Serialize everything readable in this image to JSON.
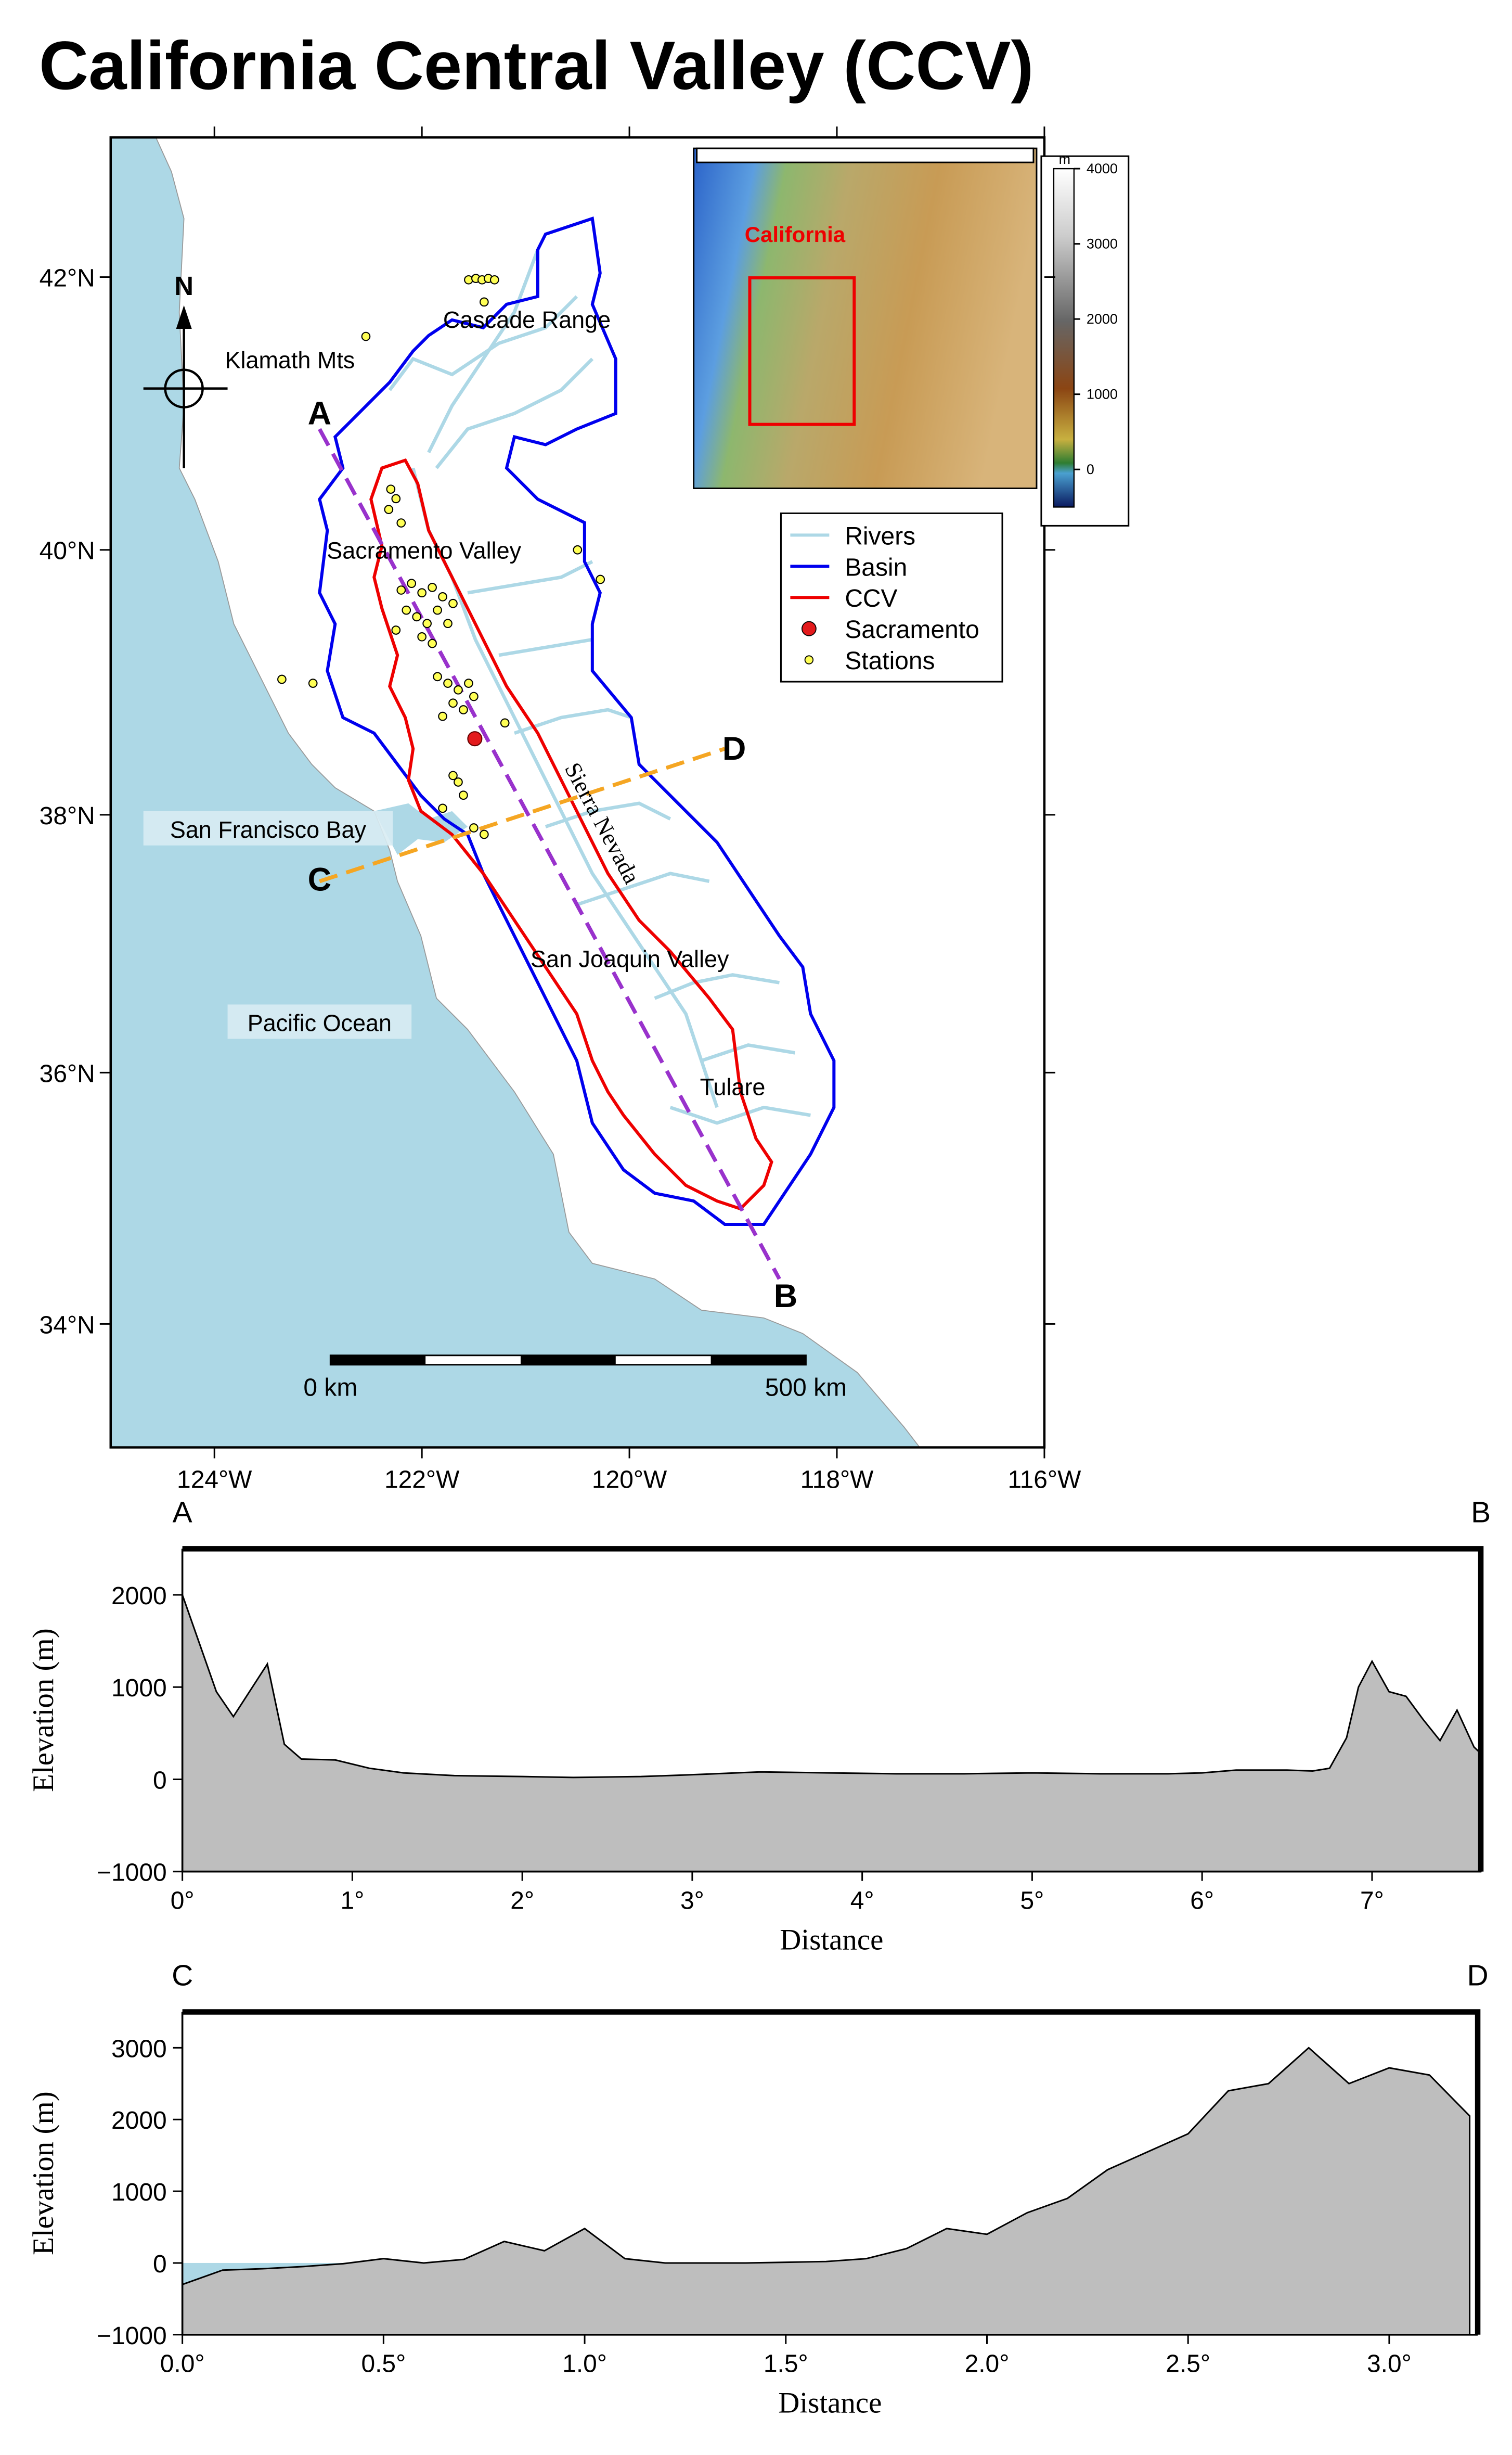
{
  "title": "California Central Valley (CCV)",
  "map": {
    "xlim": [
      -125,
      -116
    ],
    "ylim": [
      33,
      43
    ],
    "xticks": [
      {
        "value": -124,
        "label": "124°W"
      },
      {
        "value": -122,
        "label": "122°W"
      },
      {
        "value": -120,
        "label": "120°W"
      },
      {
        "value": -118,
        "label": "118°W"
      },
      {
        "value": -116,
        "label": "116°W"
      }
    ],
    "yticks": [
      {
        "value": 34,
        "label": "34°N"
      },
      {
        "value": 36,
        "label": "36°N"
      },
      {
        "value": 38,
        "label": "38°N"
      },
      {
        "value": 40,
        "label": "40°N"
      },
      {
        "value": 42,
        "label": "42°N"
      }
    ],
    "places": [
      "Cascade Range",
      "Klamath Mts",
      "Sacramento Valley",
      "Sierra Nevada",
      "San Francisco Bay",
      "Pacific Ocean",
      "San Joaquin Valley",
      "Tulare"
    ],
    "profile_labels": [
      "A",
      "B",
      "C",
      "D"
    ],
    "north": "N",
    "scale_bar": [
      "0 km",
      "500 km"
    ],
    "legend": [
      {
        "name": "Rivers",
        "color": "#add8e6"
      },
      {
        "name": "Basin",
        "color": "#0000ee"
      },
      {
        "name": "CCV",
        "color": "#ee0000"
      },
      {
        "name": "Sacramento",
        "color": "#e31a1c"
      },
      {
        "name": "Stations",
        "color": "#ffff55"
      }
    ],
    "sacramento": {
      "lon": -121.49,
      "lat": 38.58
    },
    "stations": {
      "lon": [
        -121.55,
        -121.48,
        -121.42,
        -121.36,
        -121.3,
        -121.4,
        -122.54,
        -122.3,
        -122.25,
        -122.32,
        -122.2,
        -123.35,
        -123.05,
        -120.5,
        -120.28,
        -122.2,
        -122.1,
        -122.0,
        -121.9,
        -121.8,
        -122.15,
        -122.05,
        -121.95,
        -121.85,
        -121.75,
        -122.25,
        -121.7,
        -122.0,
        -121.9,
        -121.85,
        -121.75,
        -121.65,
        -121.7,
        -121.6,
        -121.8,
        -121.55,
        -121.5,
        -121.2,
        -121.7,
        -121.65,
        -121.6,
        -121.5,
        -121.4,
        -121.8
      ],
      "lat": [
        41.98,
        41.99,
        41.98,
        41.99,
        41.98,
        41.82,
        41.57,
        40.45,
        40.38,
        40.3,
        40.2,
        39.03,
        39.0,
        40.0,
        39.78,
        39.7,
        39.75,
        39.68,
        39.72,
        39.65,
        39.55,
        39.5,
        39.45,
        39.55,
        39.45,
        39.4,
        39.6,
        39.35,
        39.3,
        39.05,
        39.0,
        38.95,
        38.85,
        38.8,
        38.75,
        39.0,
        38.9,
        38.7,
        38.3,
        38.25,
        38.15,
        37.9,
        37.85,
        38.05
      ]
    },
    "inset": {
      "label": "California",
      "unit": "m",
      "colorbar_lim": [
        -500,
        4000
      ],
      "colorbar_ticks": [
        0,
        1000,
        2000,
        3000,
        4000
      ]
    }
  },
  "chart_data": [
    {
      "type": "area",
      "start_label": "A",
      "end_label": "B",
      "x": [
        0,
        0.2,
        0.3,
        0.5,
        0.6,
        0.7,
        0.9,
        1.1,
        1.3,
        1.6,
        2.0,
        2.3,
        2.7,
        3.0,
        3.4,
        3.8,
        4.2,
        4.6,
        5.0,
        5.4,
        5.8,
        6.0,
        6.2,
        6.5,
        6.65,
        6.75,
        6.85,
        6.92,
        7.0,
        7.1,
        7.2,
        7.3,
        7.4,
        7.5,
        7.6,
        7.64
      ],
      "values": [
        2000,
        950,
        680,
        1250,
        380,
        220,
        210,
        120,
        70,
        40,
        30,
        20,
        30,
        50,
        80,
        70,
        60,
        60,
        70,
        60,
        60,
        70,
        100,
        100,
        90,
        120,
        450,
        1000,
        1280,
        950,
        900,
        650,
        420,
        750,
        350,
        280
      ],
      "xlim": [
        0,
        7.64
      ],
      "ylim": [
        -1000,
        2500
      ],
      "xticks": [
        {
          "value": 0,
          "label": "0°"
        },
        {
          "value": 1,
          "label": "1°"
        },
        {
          "value": 2,
          "label": "2°"
        },
        {
          "value": 3,
          "label": "3°"
        },
        {
          "value": 4,
          "label": "4°"
        },
        {
          "value": 5,
          "label": "5°"
        },
        {
          "value": 6,
          "label": "6°"
        },
        {
          "value": 7,
          "label": "7°"
        }
      ],
      "yticks": [
        {
          "value": -1000,
          "label": "−1000"
        },
        0,
        1000,
        2000
      ],
      "x_label": "Distance",
      "y_label": "Elevation (m)",
      "fill": "#bebebe",
      "line_color": "#000000"
    },
    {
      "type": "area",
      "start_label": "C",
      "end_label": "D",
      "x": [
        0,
        0.1,
        0.2,
        0.3,
        0.4,
        0.5,
        0.6,
        0.7,
        0.8,
        0.9,
        1.0,
        1.1,
        1.2,
        1.3,
        1.4,
        1.5,
        1.6,
        1.7,
        1.8,
        1.9,
        2.0,
        2.1,
        2.2,
        2.3,
        2.4,
        2.5,
        2.6,
        2.7,
        2.8,
        2.9,
        3.0,
        3.1,
        3.2
      ],
      "values": [
        -300,
        -100,
        -80,
        -50,
        -10,
        60,
        0,
        50,
        300,
        170,
        480,
        60,
        0,
        0,
        0,
        10,
        20,
        60,
        200,
        480,
        400,
        700,
        900,
        1300,
        1550,
        1800,
        2400,
        2500,
        3000,
        2500,
        2720,
        2620,
        2050
      ],
      "xlim": [
        0,
        3.22
      ],
      "ylim": [
        -1000,
        3500
      ],
      "xticks": [
        {
          "value": 0,
          "label": "0.0°"
        },
        {
          "value": 0.5,
          "label": "0.5°"
        },
        {
          "value": 1,
          "label": "1.0°"
        },
        {
          "value": 1.5,
          "label": "1.5°"
        },
        {
          "value": 2,
          "label": "2.0°"
        },
        {
          "value": 2.5,
          "label": "2.5°"
        },
        {
          "value": 3,
          "label": "3.0°"
        }
      ],
      "yticks": [
        {
          "value": -1000,
          "label": "−1000"
        },
        0,
        1000,
        2000,
        3000
      ],
      "x_label": "Distance",
      "y_label": "Elevation (m)",
      "fill": "#bebebe",
      "line_color": "#000000",
      "water_color": "#add8e6"
    }
  ]
}
